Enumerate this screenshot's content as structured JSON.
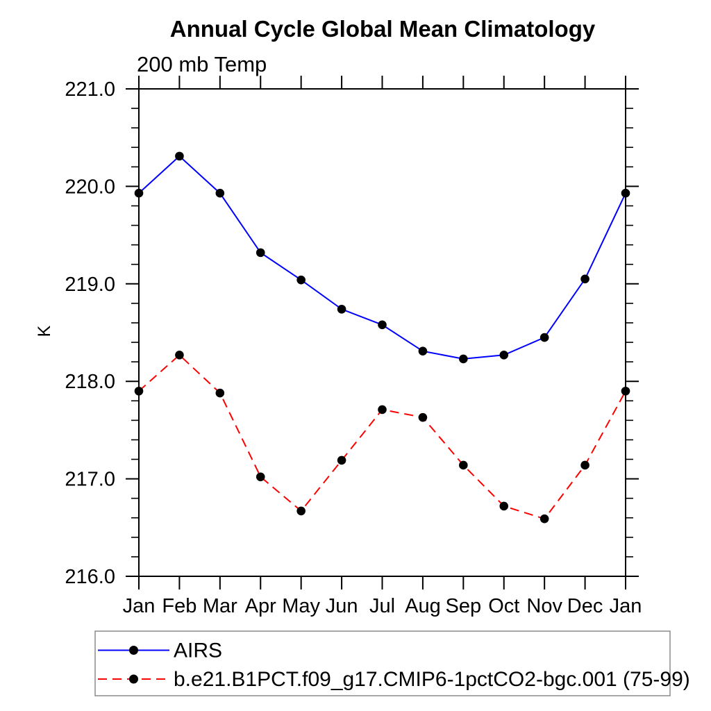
{
  "header": {
    "title": "Annual Cycle Global Mean Climatology",
    "subtitle": "200 mb Temp"
  },
  "chart_data": {
    "type": "line",
    "title": "Annual Cycle Global Mean Climatology",
    "subtitle": "200 mb Temp",
    "xlabel": "",
    "ylabel": "K",
    "ylim": [
      216.0,
      221.0
    ],
    "ytick_values": [
      216.0,
      217.0,
      218.0,
      219.0,
      220.0,
      221.0
    ],
    "ytick_labels": [
      "216.0",
      "217.0",
      "218.0",
      "219.0",
      "220.0",
      "221.0"
    ],
    "ytick_minor_interval": 0.2,
    "categories": [
      "Jan",
      "Feb",
      "Mar",
      "Apr",
      "May",
      "Jun",
      "Jul",
      "Aug",
      "Sep",
      "Oct",
      "Nov",
      "Dec",
      "Jan"
    ],
    "grid": false,
    "legend_position": "bottom-left",
    "marker": "filled-circle",
    "marker_color": "#000000",
    "series": [
      {
        "name": "AIRS",
        "color": "#0000ff",
        "line_style": "solid",
        "values": [
          219.93,
          220.31,
          219.93,
          219.32,
          219.04,
          218.74,
          218.58,
          218.31,
          218.23,
          218.27,
          218.45,
          219.05,
          219.93
        ]
      },
      {
        "name": "b.e21.B1PCT.f09_g17.CMIP6-1pctCO2-bgc.001 (75-99)",
        "color": "#ff0000",
        "line_style": "dashed",
        "values": [
          217.9,
          218.27,
          217.88,
          217.02,
          216.67,
          217.19,
          217.71,
          217.63,
          217.14,
          216.72,
          216.59,
          217.14,
          217.9
        ]
      }
    ]
  },
  "colors": {
    "axis": "#000000",
    "background": "#ffffff",
    "legend_border": "#8a8a8a"
  }
}
